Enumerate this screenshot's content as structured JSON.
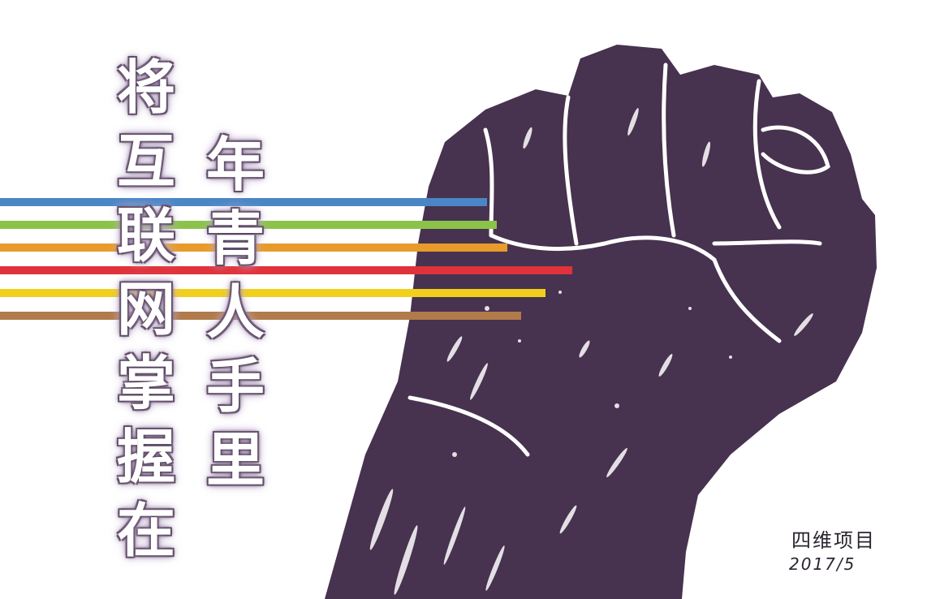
{
  "poster": {
    "headline_left": [
      "将",
      "互",
      "联",
      "网",
      "掌",
      "握",
      "在"
    ],
    "headline_right": [
      "年",
      "青",
      "人",
      "手",
      "里"
    ],
    "signature": "四维项目",
    "date": "2017/5"
  },
  "colors": {
    "background": "#ffffff",
    "fist": "#47324f",
    "text_outline": "#4a3550",
    "stripes": [
      "#4a86c6",
      "#8bc34a",
      "#e89b2a",
      "#e0323a",
      "#f2cf1c",
      "#b07a4a"
    ]
  },
  "icons": {
    "main_graphic": "raised-fist-icon"
  }
}
